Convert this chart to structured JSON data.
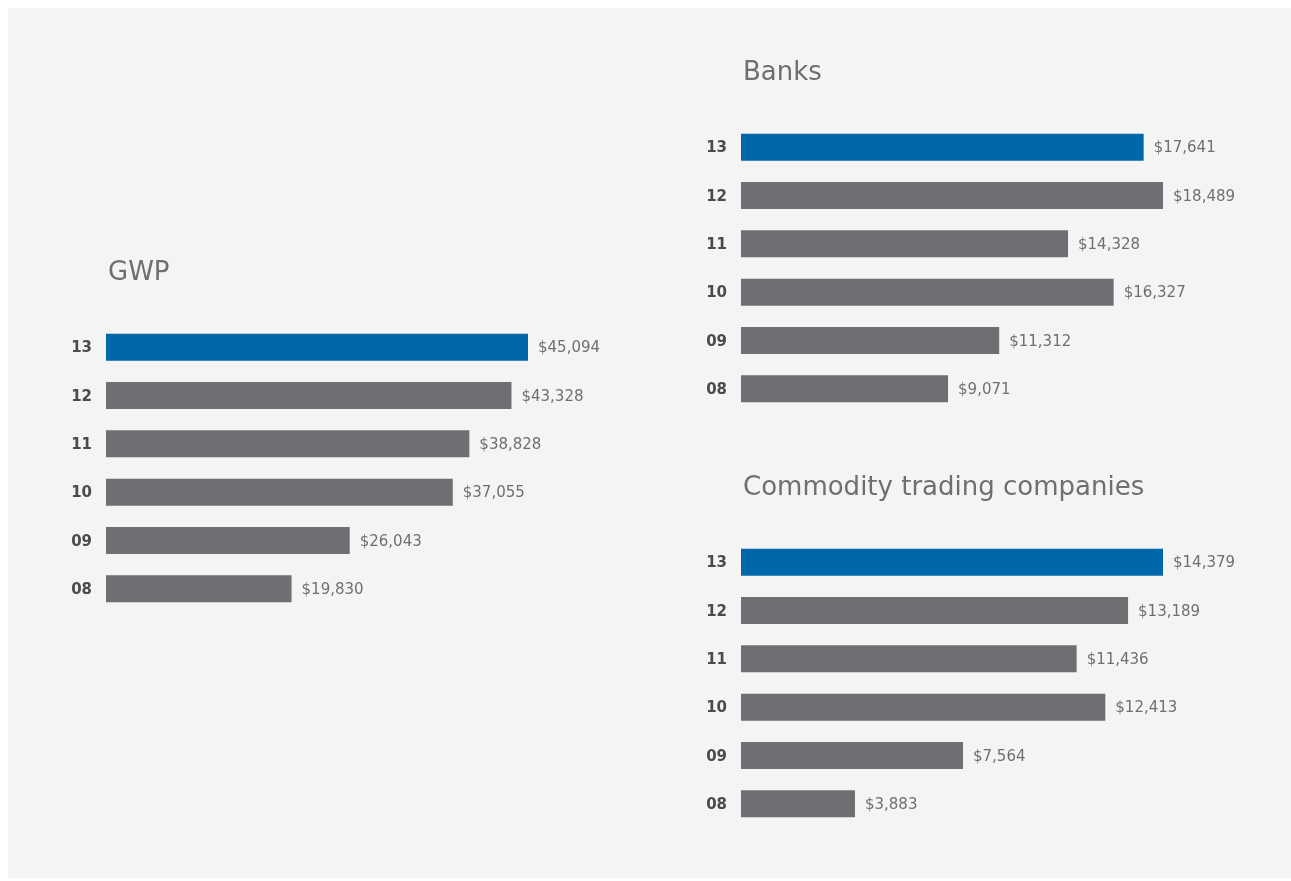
{
  "chart_data": [
    {
      "type": "bar",
      "orientation": "horizontal",
      "title": "GWP",
      "categories": [
        "13",
        "12",
        "11",
        "10",
        "09",
        "08"
      ],
      "values": [
        45094,
        43328,
        38828,
        37055,
        26043,
        19830
      ],
      "colors": [
        "#0068a8",
        "#6f6e73",
        "#6f6e73",
        "#6f6e73",
        "#6f6e73",
        "#6f6e73"
      ],
      "value_labels": [
        "$45,094",
        "$43,328",
        "$38,828",
        "$37,055",
        "$26,043",
        "$19,830"
      ]
    },
    {
      "type": "bar",
      "orientation": "horizontal",
      "title": "Banks",
      "categories": [
        "13",
        "12",
        "11",
        "10",
        "09",
        "08"
      ],
      "values": [
        17641,
        18489,
        14328,
        16327,
        11312,
        9071
      ],
      "colors": [
        "#0068a8",
        "#6f6e73",
        "#6f6e73",
        "#6f6e73",
        "#6f6e73",
        "#6f6e73"
      ],
      "value_labels": [
        "$17,641",
        "$18,489",
        "$14,328",
        "$16,327",
        "$11,312",
        "$9,071"
      ]
    },
    {
      "type": "bar",
      "orientation": "horizontal",
      "title": "Commodity trading companies",
      "categories": [
        "13",
        "12",
        "11",
        "10",
        "09",
        "08"
      ],
      "values": [
        14379,
        13189,
        11436,
        12413,
        7564,
        3883
      ],
      "colors": [
        "#0068a8",
        "#6f6e73",
        "#6f6e73",
        "#6f6e73",
        "#6f6e73",
        "#6f6e73"
      ],
      "value_labels": [
        "$14,379",
        "$13,189",
        "$11,436",
        "$12,413",
        "$7,564",
        "$3,883"
      ]
    }
  ]
}
